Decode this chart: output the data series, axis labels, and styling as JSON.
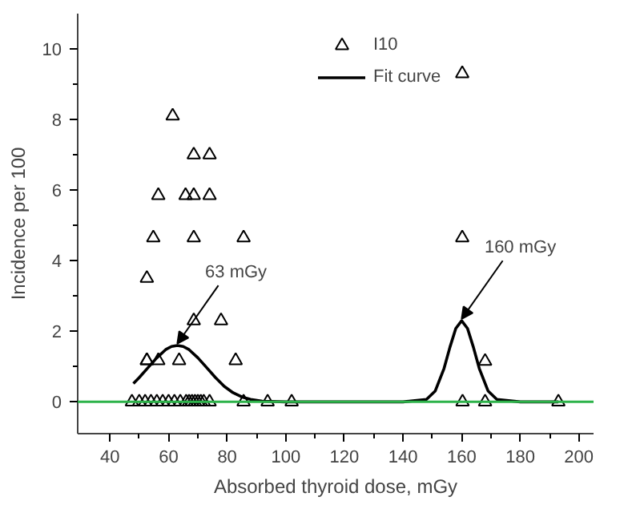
{
  "chart_data": {
    "type": "scatter",
    "xlabel": "Absorbed thyroid dose, mGy",
    "ylabel": "Incidence per 100",
    "xlim": [
      29,
      205
    ],
    "ylim": [
      -0.9,
      11
    ],
    "xticks": [
      40,
      60,
      80,
      100,
      120,
      140,
      160,
      180,
      200
    ],
    "yticks": [
      0,
      2,
      4,
      6,
      8,
      10
    ],
    "grid": false,
    "legend": "top right",
    "marker": "triangle",
    "series": [
      {
        "name": "I10",
        "color": "#000000",
        "x": [
          52.6,
          54.8,
          56.5,
          61.4,
          65.8,
          68.6,
          68.6,
          74,
          74,
          68.6,
          85.6,
          52.6,
          68.6,
          77.9,
          52.6,
          56.5,
          63.6,
          82.9,
          47.5,
          50,
          52,
          54,
          56,
          58,
          60,
          62,
          64,
          66,
          67,
          68,
          69,
          70,
          71,
          72,
          74,
          85.6,
          93.8,
          102,
          160.3,
          168,
          193,
          160.2,
          160.2,
          168
        ],
        "values": [
          3.5,
          4.65,
          5.85,
          8.1,
          5.85,
          7.0,
          5.85,
          7.0,
          5.85,
          4.65,
          4.65,
          1.17,
          2.3,
          2.3,
          1.17,
          1.17,
          1.17,
          1.17,
          0,
          0,
          0,
          0,
          0,
          0,
          0,
          0,
          0,
          0,
          0,
          0,
          0,
          0,
          0,
          0,
          0,
          0,
          0,
          0,
          0,
          0,
          0,
          9.3,
          4.65,
          1.15
        ]
      },
      {
        "name": "Fit curve",
        "type": "line",
        "color": "#000000",
        "line_style": "solid",
        "marker": "none",
        "x": [
          48,
          50,
          53,
          56,
          59,
          61,
          63,
          65,
          67,
          70,
          73,
          76,
          79,
          82,
          85,
          88,
          92,
          100,
          140,
          148,
          151,
          154,
          156,
          158,
          160,
          162,
          164,
          166,
          169,
          172,
          180,
          193
        ],
        "values": [
          0.52,
          0.69,
          0.97,
          1.25,
          1.48,
          1.57,
          1.6,
          1.57,
          1.48,
          1.25,
          0.97,
          0.69,
          0.44,
          0.26,
          0.14,
          0.07,
          0.02,
          0,
          0,
          0.07,
          0.31,
          0.95,
          1.55,
          2.08,
          2.3,
          2.08,
          1.55,
          0.95,
          0.31,
          0.07,
          0,
          0
        ]
      }
    ],
    "ref_lines": [
      {
        "axis": "y",
        "value": 0,
        "color": "#2db34a"
      }
    ],
    "annotations": [
      {
        "text": "63 mGy",
        "x": 63,
        "y": 1.6
      },
      {
        "text": "160 mGy",
        "x": 160,
        "y": 2.3
      }
    ]
  }
}
